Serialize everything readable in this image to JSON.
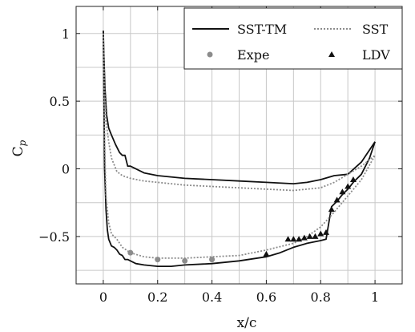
{
  "chart_data": {
    "type": "line",
    "xlabel": "x/c",
    "ylabel": "C",
    "ylabel_sub": "p",
    "xlim": [
      -0.1,
      1.1
    ],
    "ylim": [
      -0.85,
      1.2
    ],
    "grid": true,
    "legend_placement": "top-right",
    "x_ticks": [
      0,
      0.2,
      0.4,
      0.6,
      0.8,
      1
    ],
    "x_tick_labels": [
      "0",
      "0.2",
      "0.4",
      "0.6",
      "0.8",
      "1"
    ],
    "y_ticks": [
      1,
      0.5,
      0,
      -0.5
    ],
    "y_tick_labels": [
      "1",
      "0.5",
      "0",
      "−0.5"
    ],
    "series": [
      {
        "name": "SST-TM",
        "kind": "line",
        "style": "solid",
        "color": "#111111",
        "segments": [
          {
            "x": [
              0,
              0.002,
              0.006,
              0.012,
              0.02,
              0.03,
              0.045,
              0.06,
              0.07,
              0.08,
              0.09,
              0.1,
              0.15,
              0.2,
              0.3,
              0.4,
              0.5,
              0.6,
              0.7,
              0.75,
              0.8,
              0.85,
              0.9,
              0.95,
              1.0
            ],
            "y": [
              1.02,
              0.85,
              0.6,
              0.4,
              0.3,
              0.25,
              0.18,
              0.12,
              0.1,
              0.1,
              0.02,
              0.02,
              -0.03,
              -0.05,
              -0.07,
              -0.08,
              -0.09,
              -0.1,
              -0.11,
              -0.1,
              -0.08,
              -0.05,
              -0.04,
              0.05,
              0.2
            ]
          },
          {
            "x": [
              0,
              0.002,
              0.005,
              0.01,
              0.015,
              0.02,
              0.03,
              0.04,
              0.05,
              0.06,
              0.07,
              0.08,
              0.09,
              0.1,
              0.12,
              0.15,
              0.2,
              0.25,
              0.3,
              0.4,
              0.5,
              0.6,
              0.65,
              0.7,
              0.75,
              0.8,
              0.82,
              0.83,
              0.84,
              0.86,
              0.88,
              0.9,
              0.92,
              0.95,
              0.98,
              1.0
            ],
            "y": [
              1.02,
              0.6,
              0.0,
              -0.3,
              -0.45,
              -0.52,
              -0.57,
              -0.58,
              -0.6,
              -0.63,
              -0.64,
              -0.67,
              -0.67,
              -0.68,
              -0.7,
              -0.71,
              -0.72,
              -0.72,
              -0.71,
              -0.7,
              -0.68,
              -0.65,
              -0.62,
              -0.58,
              -0.55,
              -0.53,
              -0.52,
              -0.4,
              -0.28,
              -0.24,
              -0.19,
              -0.15,
              -0.1,
              -0.04,
              0.08,
              0.2
            ]
          }
        ]
      },
      {
        "name": "SST",
        "kind": "line",
        "style": "dotted",
        "color": "#8c8c8c",
        "segments": [
          {
            "x": [
              0,
              0.005,
              0.01,
              0.02,
              0.03,
              0.05,
              0.07,
              0.1,
              0.15,
              0.2,
              0.3,
              0.4,
              0.5,
              0.6,
              0.7,
              0.8,
              0.85,
              0.9,
              0.95,
              1.0
            ],
            "y": [
              1.0,
              0.6,
              0.35,
              0.2,
              0.08,
              -0.02,
              -0.05,
              -0.07,
              -0.09,
              -0.1,
              -0.12,
              -0.13,
              -0.14,
              -0.15,
              -0.16,
              -0.14,
              -0.1,
              -0.04,
              0.02,
              0.1
            ]
          },
          {
            "x": [
              0,
              0.005,
              0.01,
              0.02,
              0.03,
              0.05,
              0.07,
              0.1,
              0.15,
              0.2,
              0.25,
              0.3,
              0.4,
              0.5,
              0.6,
              0.7,
              0.75,
              0.8,
              0.85,
              0.9,
              0.95,
              1.0
            ],
            "y": [
              1.0,
              0.2,
              -0.2,
              -0.4,
              -0.48,
              -0.52,
              -0.58,
              -0.62,
              -0.65,
              -0.66,
              -0.66,
              -0.66,
              -0.65,
              -0.64,
              -0.6,
              -0.55,
              -0.5,
              -0.43,
              -0.32,
              -0.2,
              -0.08,
              0.1
            ]
          }
        ]
      },
      {
        "name": "Expe",
        "kind": "scatter",
        "marker": "circle",
        "color": "#8c8c8c",
        "x": [
          0.1,
          0.2,
          0.3,
          0.4
        ],
        "y": [
          -0.62,
          -0.67,
          -0.68,
          -0.67
        ]
      },
      {
        "name": "LDV",
        "kind": "scatter",
        "marker": "triangle",
        "color": "#111111",
        "x": [
          0.6,
          0.68,
          0.7,
          0.72,
          0.74,
          0.76,
          0.78,
          0.8,
          0.82,
          0.84,
          0.86,
          0.88,
          0.9,
          0.92
        ],
        "y": [
          -0.63,
          -0.52,
          -0.52,
          -0.52,
          -0.51,
          -0.5,
          -0.5,
          -0.48,
          -0.47,
          -0.3,
          -0.23,
          -0.17,
          -0.13,
          -0.08
        ]
      }
    ]
  }
}
